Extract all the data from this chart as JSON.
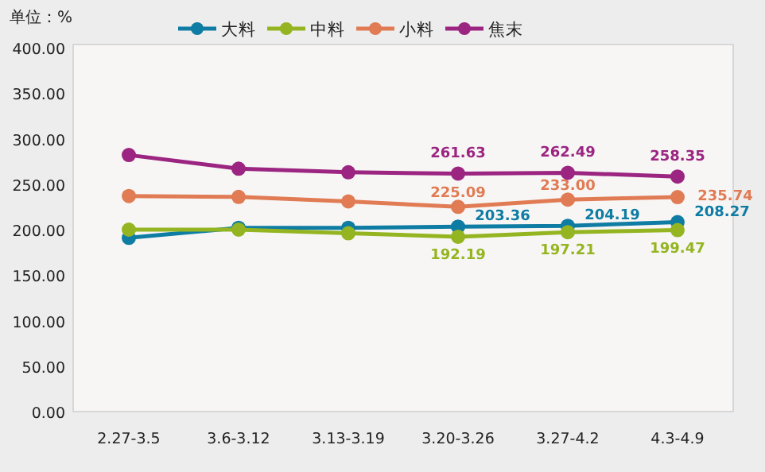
{
  "chart_data": {
    "type": "line",
    "ylabel": "单位：%",
    "categories": [
      "2.27-3.5",
      "3.6-3.12",
      "3.13-3.19",
      "3.20-3.26",
      "3.27-4.2",
      "4.3-4.9"
    ],
    "series": [
      {
        "name": "大料",
        "color": "#0e7ca3",
        "values": [
          191,
          202,
          202,
          203.36,
          204.19,
          208.27
        ],
        "value_labels": [
          null,
          null,
          null,
          "203.36",
          "204.19",
          "208.27"
        ]
      },
      {
        "name": "中料",
        "color": "#94b521",
        "values": [
          200,
          200,
          196,
          192.19,
          197.21,
          199.47
        ],
        "value_labels": [
          null,
          null,
          null,
          "192.19",
          "197.21",
          "199.47"
        ]
      },
      {
        "name": "小料",
        "color": "#e07b54",
        "values": [
          237,
          236,
          231,
          225.09,
          233.0,
          235.74
        ],
        "value_labels": [
          null,
          null,
          null,
          "225.09",
          "233.00",
          "235.74"
        ]
      },
      {
        "name": "焦末",
        "color": "#9b2580",
        "values": [
          282,
          267,
          263,
          261.63,
          262.49,
          258.35
        ],
        "value_labels": [
          null,
          null,
          null,
          "261.63",
          "262.49",
          "258.35"
        ]
      }
    ],
    "ylim": [
      0,
      400
    ],
    "yticks": [
      {
        "value": 0,
        "label": "0.00"
      },
      {
        "value": 50,
        "label": "50.00"
      },
      {
        "value": 100,
        "label": "100.00"
      },
      {
        "value": 150,
        "label": "150.00"
      },
      {
        "value": 200,
        "label": "200.00"
      },
      {
        "value": 250,
        "label": "250.00"
      },
      {
        "value": 300,
        "label": "300.00"
      },
      {
        "value": 350,
        "label": "350.00"
      },
      {
        "value": 400,
        "label": "400.00"
      }
    ],
    "legend": "top",
    "marker": "circle",
    "line_style": "solid"
  }
}
